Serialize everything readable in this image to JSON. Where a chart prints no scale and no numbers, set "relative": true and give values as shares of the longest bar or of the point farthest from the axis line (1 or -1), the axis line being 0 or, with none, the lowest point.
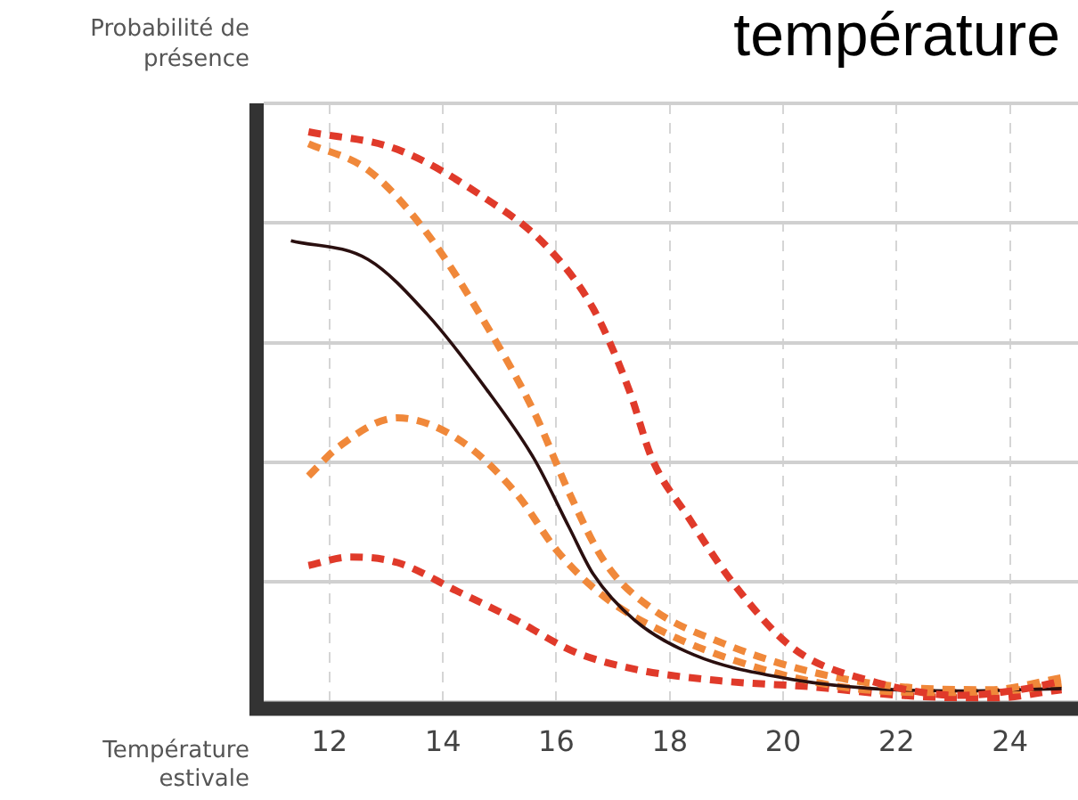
{
  "chart_data": {
    "type": "line",
    "title": "température",
    "xlabel": "Température estivale",
    "ylabel": "Probabilité de présence",
    "relative": true,
    "xlim": [
      10.84,
      25.2
    ],
    "xticks": [
      12,
      14,
      16,
      18,
      20,
      22,
      24
    ],
    "grid": true,
    "legend": false,
    "marker": "none",
    "series": [
      {
        "color": "#e03a2a",
        "line_style": "dashed",
        "x": [
          11.63,
          13.2,
          14.77,
          15.81,
          16.65,
          17.28,
          17.69,
          18.32,
          19.15,
          20.2,
          21.56,
          23.13,
          24.17,
          24.91
        ],
        "values": [
          1,
          0.969,
          0.882,
          0.801,
          0.69,
          0.548,
          0.426,
          0.325,
          0.204,
          0.092,
          0.036,
          0.011,
          0.021,
          0.036
        ]
      },
      {
        "color": "#f0883a",
        "line_style": "dashed",
        "x": [
          11.63,
          12.68,
          13.72,
          14.77,
          15.61,
          16.23,
          16.86,
          17.69,
          18.95,
          20.51,
          22.08,
          23.65,
          24.91
        ],
        "values": [
          0.979,
          0.933,
          0.822,
          0.66,
          0.508,
          0.366,
          0.244,
          0.163,
          0.102,
          0.052,
          0.026,
          0.021,
          0.042
        ]
      },
      {
        "color": "#2a0f0f",
        "line_style": "solid",
        "x": [
          11.32,
          12.68,
          13.72,
          14.77,
          15.61,
          16.23,
          16.65,
          17.38,
          18.43,
          19.99,
          21.56,
          23.13,
          24.91
        ],
        "values": [
          0.809,
          0.776,
          0.68,
          0.548,
          0.426,
          0.305,
          0.224,
          0.143,
          0.082,
          0.042,
          0.023,
          0.019,
          0.023
        ]
      },
      {
        "color": "#f0883a",
        "line_style": "dashed",
        "x": [
          11.63,
          12.16,
          13.2,
          14.25,
          15.29,
          16.02,
          16.86,
          17.9,
          19.47,
          21.03,
          22.6,
          24.17,
          24.91
        ],
        "values": [
          0.396,
          0.447,
          0.498,
          0.462,
          0.366,
          0.264,
          0.183,
          0.122,
          0.062,
          0.026,
          0.016,
          0.021,
          0.031
        ]
      },
      {
        "color": "#e03a2a",
        "line_style": "dashed",
        "x": [
          11.63,
          12.37,
          13.2,
          14.25,
          15.29,
          16.33,
          17.38,
          18.95,
          20.51,
          22.08,
          23.65,
          24.91
        ],
        "values": [
          0.239,
          0.254,
          0.244,
          0.194,
          0.143,
          0.087,
          0.057,
          0.036,
          0.026,
          0.011,
          0.006,
          0.021
        ]
      }
    ]
  }
}
